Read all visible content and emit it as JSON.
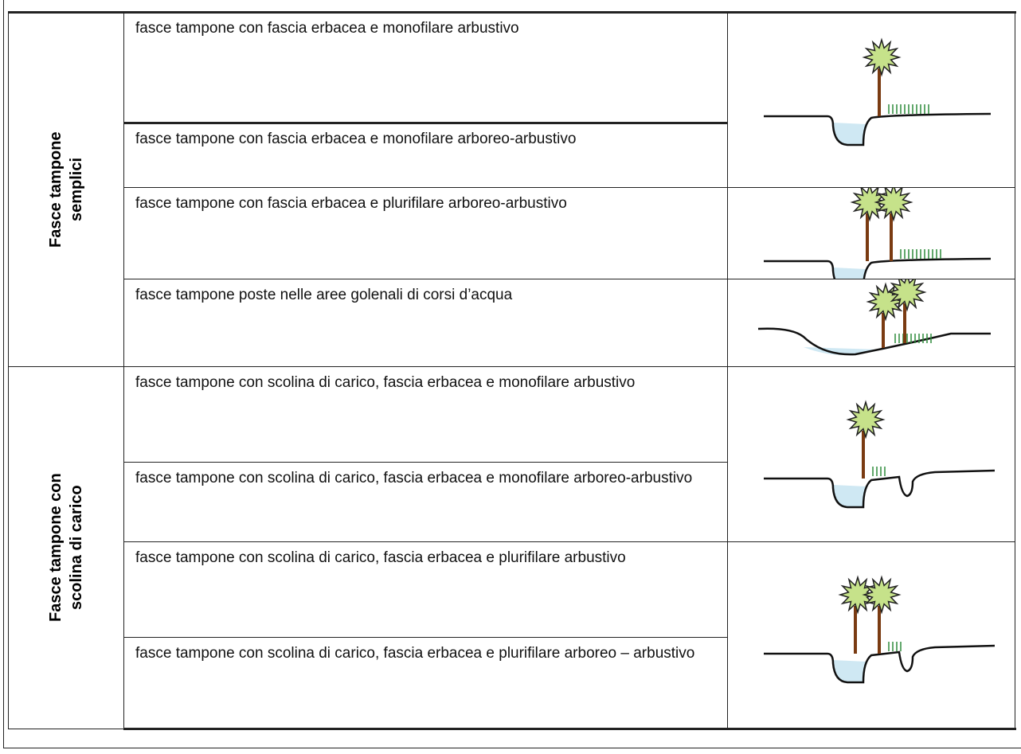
{
  "groups": [
    {
      "label": "Fasce tampone semplici",
      "rows": [
        "fasce tampone con fascia erbacea e monofilare arbustivo",
        "fasce tampone con fascia erbacea e monofilare arboreo-arbustivo",
        "fasce tampone con fascia erbacea e plurifilare arboreo-arbustivo",
        "fasce tampone poste nelle aree golenali di corsi d’acqua"
      ]
    },
    {
      "label": "Fasce tampone con scolina di carico",
      "rows": [
        "fasce tampone con scolina di carico, fascia erbacea e monofilare arbustivo",
        "fasce tampone con scolina di carico, fascia erbacea e monofilare arboreo-arbustivo",
        "fasce tampone con scolina di carico, fascia erbacea e plurifilare arbustivo",
        "fasce tampone con scolina di carico, fascia erbacea e plurifilare arboreo – arbustivo"
      ]
    }
  ]
}
